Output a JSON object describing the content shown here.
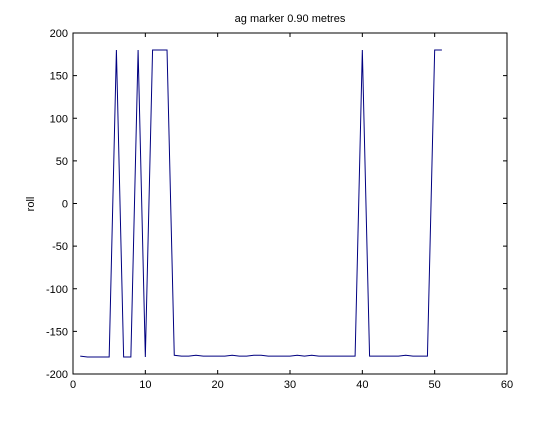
{
  "chart_data": {
    "type": "line",
    "title": "ag marker 0.90 metres",
    "xlabel": "",
    "ylabel": "roll",
    "xlim": [
      0,
      60
    ],
    "ylim": [
      -200,
      200
    ],
    "xticks": [
      0,
      10,
      20,
      30,
      40,
      50,
      60
    ],
    "yticks": [
      -200,
      -150,
      -100,
      -50,
      0,
      50,
      100,
      150,
      200
    ],
    "grid": false,
    "line_color": "#000080",
    "series": [
      {
        "x": [
          1,
          2,
          3,
          4,
          5,
          6,
          7,
          8,
          9,
          10,
          11,
          12,
          13,
          14,
          15,
          16,
          17,
          18,
          19,
          20,
          21,
          22,
          23,
          24,
          25,
          26,
          27,
          28,
          29,
          30,
          31,
          32,
          33,
          34,
          35,
          36,
          37,
          38,
          39,
          40,
          41,
          42,
          43,
          44,
          45,
          46,
          47,
          48,
          49,
          50,
          51
        ],
        "y": [
          -179,
          -180,
          -180,
          -180,
          -180,
          180,
          -180,
          -180,
          180,
          -180,
          180,
          180,
          180,
          -178,
          -179,
          -179,
          -178,
          -179,
          -179,
          -179,
          -179,
          -178,
          -179,
          -179,
          -178,
          -178,
          -179,
          -179,
          -179,
          -179,
          -178,
          -179,
          -178,
          -179,
          -179,
          -179,
          -179,
          -179,
          -179,
          180,
          -179,
          -179,
          -179,
          -179,
          -179,
          -178,
          -179,
          -179,
          -179,
          180,
          180
        ]
      }
    ]
  }
}
